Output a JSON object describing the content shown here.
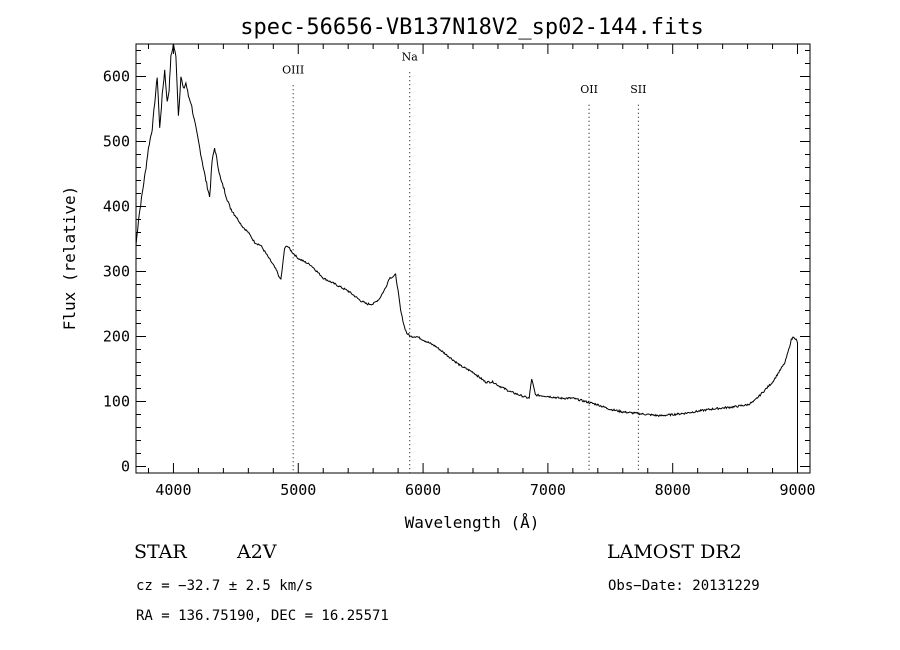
{
  "chart_data": {
    "type": "line",
    "title": "spec-56656-VB137N18V2_sp02-144.fits",
    "xlabel": "Wavelength (Å)",
    "ylabel": "Flux (relative)",
    "xlim": [
      3700,
      9100
    ],
    "ylim": [
      -10,
      650
    ],
    "x_ticks": [
      4000,
      5000,
      6000,
      7000,
      8000,
      9000
    ],
    "y_ticks": [
      0,
      100,
      200,
      300,
      400,
      500,
      600
    ],
    "grid": false,
    "series": [
      {
        "x": [
          3700,
          3720,
          3750,
          3780,
          3800,
          3830,
          3850,
          3870,
          3890,
          3910,
          3930,
          3950,
          3965,
          3980,
          4000,
          4020,
          4040,
          4060,
          4080,
          4100,
          4120,
          4140,
          4160,
          4180,
          4200,
          4230,
          4260,
          4290,
          4310,
          4330,
          4340,
          4360,
          4380,
          4400,
          4450,
          4500,
          4550,
          4600,
          4650,
          4700,
          4750,
          4800,
          4830,
          4850,
          4861,
          4875,
          4890,
          4910,
          4950,
          5000,
          5050,
          5100,
          5150,
          5200,
          5300,
          5400,
          5500,
          5550,
          5600,
          5650,
          5700,
          5730,
          5760,
          5780,
          5800,
          5820,
          5850,
          5870,
          5900,
          5950,
          6000,
          6100,
          6200,
          6300,
          6400,
          6500,
          6563,
          6600,
          6700,
          6800,
          6850,
          6870,
          6900,
          7000,
          7100,
          7200,
          7300,
          7400,
          7500,
          7600,
          7700,
          7800,
          7900,
          8000,
          8100,
          8200,
          8300,
          8400,
          8500,
          8600,
          8650,
          8700,
          8750,
          8800,
          8850,
          8900,
          8930,
          8950,
          8970,
          8990,
          9000
        ],
        "y": [
          340,
          380,
          420,
          460,
          490,
          520,
          560,
          600,
          520,
          570,
          610,
          560,
          580,
          630,
          650,
          630,
          540,
          600,
          580,
          590,
          570,
          560,
          540,
          520,
          500,
          470,
          440,
          415,
          470,
          490,
          480,
          460,
          440,
          430,
          400,
          385,
          370,
          360,
          345,
          340,
          325,
          310,
          300,
          290,
          288,
          310,
          335,
          340,
          330,
          320,
          315,
          310,
          300,
          290,
          280,
          270,
          255,
          250,
          250,
          258,
          275,
          290,
          292,
          295,
          270,
          240,
          215,
          205,
          200,
          200,
          195,
          185,
          170,
          155,
          145,
          130,
          130,
          125,
          115,
          108,
          105,
          135,
          110,
          108,
          105,
          105,
          100,
          95,
          88,
          84,
          82,
          80,
          78,
          80,
          82,
          85,
          88,
          90,
          92,
          95,
          100,
          110,
          120,
          130,
          145,
          160,
          180,
          195,
          200,
          195,
          190
        ]
      }
    ],
    "annotations": [
      {
        "text": "OIII",
        "x": 4959,
        "label_y": 605
      },
      {
        "text": "Na",
        "x": 5893,
        "label_y": 625
      },
      {
        "text": "OII",
        "x": 7330,
        "label_y": 575
      },
      {
        "text": "SII",
        "x": 7725,
        "label_y": 575
      }
    ]
  },
  "footer": {
    "object_type": "STAR",
    "spectral_class": "A2V",
    "survey": "LAMOST DR2",
    "cz": "cz = −32.7 ± 2.5 km/s",
    "obs_date": "Obs−Date: 20131229",
    "coords": "RA = 136.75190, DEC =  16.25571"
  }
}
